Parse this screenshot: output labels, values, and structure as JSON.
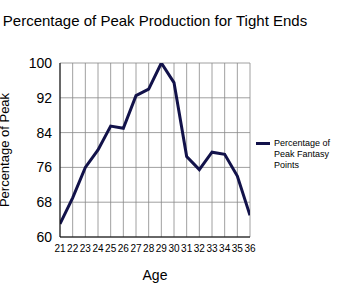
{
  "chart_data": {
    "type": "line",
    "title": "Percentage of Peak Production for Tight Ends",
    "x_label": "Age",
    "y_label": "Percentage of Peak",
    "x": [
      21,
      22,
      23,
      24,
      25,
      26,
      27,
      28,
      29,
      30,
      31,
      32,
      33,
      34,
      35,
      36
    ],
    "series": [
      {
        "name": "Percentage of Peak Fantasy Points",
        "color": "#12124a",
        "values": [
          63,
          69,
          76,
          80,
          85.5,
          85,
          92.5,
          94,
          100,
          95.5,
          78.5,
          75.5,
          79.5,
          79,
          74,
          65
        ]
      }
    ],
    "xlim": [
      21,
      36
    ],
    "xticks": [
      21,
      22,
      23,
      24,
      25,
      26,
      27,
      28,
      29,
      30,
      31,
      32,
      33,
      34,
      35,
      36
    ],
    "ylim": [
      60,
      100
    ],
    "yticks": [
      60,
      68,
      76,
      84,
      92,
      100
    ],
    "grid": true,
    "legend": "right"
  }
}
